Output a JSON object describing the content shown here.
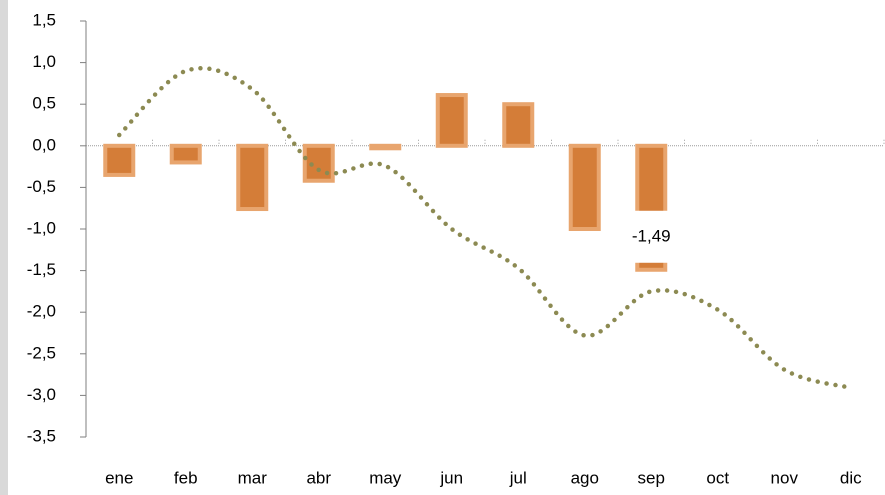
{
  "chart_data": {
    "type": "combo",
    "categories": [
      "ene",
      "feb",
      "mar",
      "abr",
      "may",
      "jun",
      "jul",
      "ago",
      "sep",
      "oct",
      "nov",
      "dic"
    ],
    "series": [
      {
        "type": "bar",
        "color": "#d47d38",
        "border": "#e8a56e",
        "values": [
          -0.35,
          -0.2,
          -0.76,
          -0.42,
          -0.03,
          0.61,
          0.5,
          -1.0,
          -1.49,
          null,
          null,
          null
        ],
        "value_labels": [
          null,
          null,
          null,
          null,
          null,
          null,
          null,
          null,
          "-1,49",
          null,
          null,
          null
        ]
      },
      {
        "type": "line",
        "color": "#8c8a52",
        "values": [
          0.13,
          0.9,
          0.68,
          -0.29,
          -0.24,
          -1.0,
          -1.47,
          -2.28,
          -1.75,
          -1.97,
          -2.69,
          -2.91
        ]
      }
    ],
    "ylim": [
      -3.5,
      1.5
    ],
    "yticks": [
      {
        "value": -3.5,
        "label": "-3,5"
      },
      {
        "value": -3,
        "label": "-3,0"
      },
      {
        "value": -2.5,
        "label": "-2,5"
      },
      {
        "value": -2,
        "label": "-2,0"
      },
      {
        "value": -1.5,
        "label": "-1,5"
      },
      {
        "value": -1,
        "label": "-1,0"
      },
      {
        "value": -0.5,
        "label": "-0,5"
      },
      {
        "value": 0,
        "label": "0,0"
      },
      {
        "value": 0.5,
        "label": "0,5"
      },
      {
        "value": 1,
        "label": "1,0"
      },
      {
        "value": 1.5,
        "label": "1,5"
      }
    ]
  }
}
